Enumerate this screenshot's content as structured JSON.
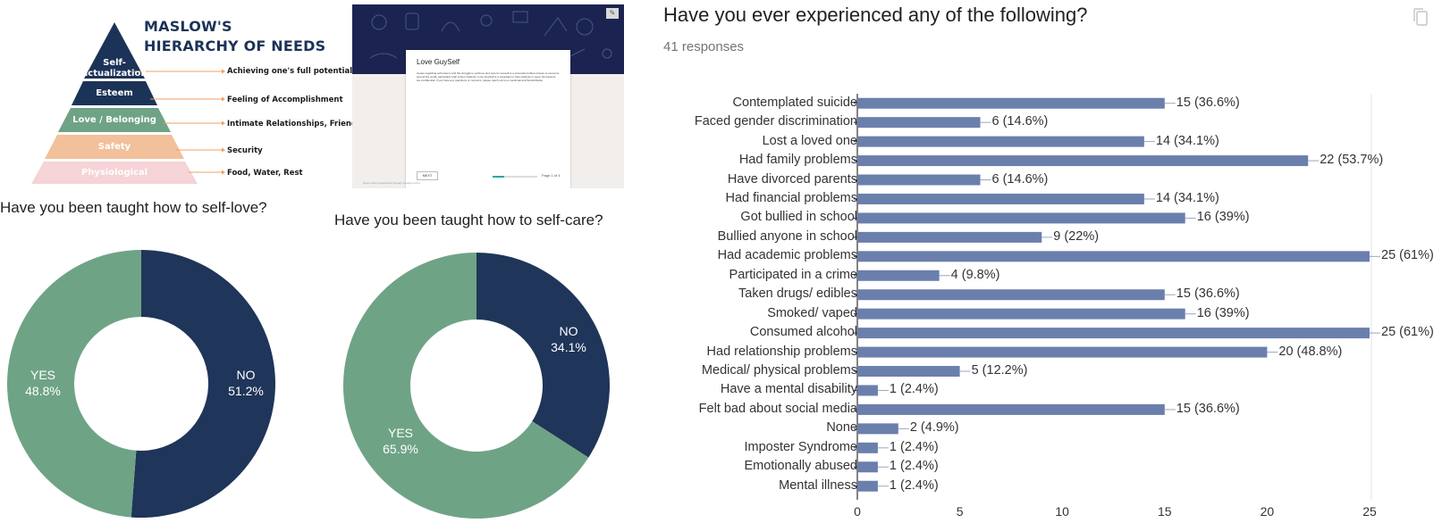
{
  "maslow": {
    "title_line1": "MASLOW'S",
    "title_line2": "HIERARCHY OF NEEDS",
    "levels": [
      {
        "name": "Self-\nactualization",
        "need": "Achieving one's full potential",
        "color": "#1c3358",
        "text_color": "#ffffff"
      },
      {
        "name": "Esteem",
        "need": "Feeling of Accomplishment",
        "color": "#1c3358",
        "text_color": "#ffffff"
      },
      {
        "name": "Love / Belonging",
        "need": "Intimate Relationships, Friends",
        "color": "#6fa386",
        "text_color": "#ffffff"
      },
      {
        "name": "Safety",
        "need": "Security",
        "color": "#f2c09b",
        "text_color": "#ffffff"
      },
      {
        "name": "Physiological",
        "need": "Food, Water, Rest",
        "color": "#f6d3d6",
        "text_color": "#ffffff"
      }
    ],
    "connector_color": "#f0a060"
  },
  "form_preview": {
    "title": "Love GuySelf",
    "body": "Issues regarding self esteem and the struggle to self-love and care for oneself is a universal problem known to everyone around the world, particularly high school students. Love GuySelf is a campaign to help students in need. All answers are confidential. If you have any questions or concerns, please reach out to us via Email and Social Media.",
    "next_label": "NEXT",
    "page_label": "Page 1 of 4",
    "footer": "Never submit passwords through Google Forms.",
    "progress": 0.25
  },
  "pie_charts": [
    {
      "title": "Have you been taught how to self-love?",
      "slices": [
        {
          "label": "NO",
          "percent_label": "51.2%",
          "value": 51.2,
          "color": "#1f3559"
        },
        {
          "label": "YES",
          "percent_label": "48.8%",
          "value": 48.8,
          "color": "#6fa386"
        }
      ]
    },
    {
      "title": "Have you been taught how to self-care?",
      "slices": [
        {
          "label": "NO",
          "percent_label": "34.1%",
          "value": 34.1,
          "color": "#1f3559"
        },
        {
          "label": "YES",
          "percent_label": "65.9%",
          "value": 65.9,
          "color": "#6fa386"
        }
      ]
    }
  ],
  "chart_data": {
    "type": "bar",
    "orientation": "horizontal",
    "title": "Have you ever experienced any of the following?",
    "subtitle": "41 responses",
    "categories": [
      "Contemplated suicide",
      "Faced gender discrimination",
      "Lost a loved one",
      "Had family problems",
      "Have divorced parents",
      "Had financial problems",
      "Got bullied in school",
      "Bullied anyone in school",
      "Had academic problems",
      "Participated in a crime",
      "Taken drugs/ edibles",
      "Smoked/ vaped",
      "Consumed alcohol",
      "Had relationship problems",
      "Medical/ physical problems",
      "Have a mental disability",
      "Felt bad about social media",
      "None",
      "Imposter Syndrome",
      "Emotionally abused",
      "Mental illness"
    ],
    "values": [
      15,
      6,
      14,
      22,
      6,
      14,
      16,
      9,
      25,
      4,
      15,
      16,
      25,
      20,
      5,
      1,
      15,
      2,
      1,
      1,
      1
    ],
    "value_labels": [
      "15 (36.6%)",
      "6 (14.6%)",
      "14 (34.1%)",
      "22 (53.7%)",
      "6 (14.6%)",
      "14 (34.1%)",
      "16 (39%)",
      "9 (22%)",
      "25 (61%)",
      "4 (9.8%)",
      "15 (36.6%)",
      "16 (39%)",
      "25 (61%)",
      "20 (48.8%)",
      "5 (12.2%)",
      "1 (2.4%)",
      "15 (36.6%)",
      "2 (4.9%)",
      "1 (2.4%)",
      "1 (2.4%)",
      "1 (2.4%)"
    ],
    "xlim": [
      0,
      25
    ],
    "xticks": [
      "0",
      "5",
      "10",
      "15",
      "20",
      "25"
    ],
    "bar_color": "#6b7fad",
    "grid": true
  }
}
